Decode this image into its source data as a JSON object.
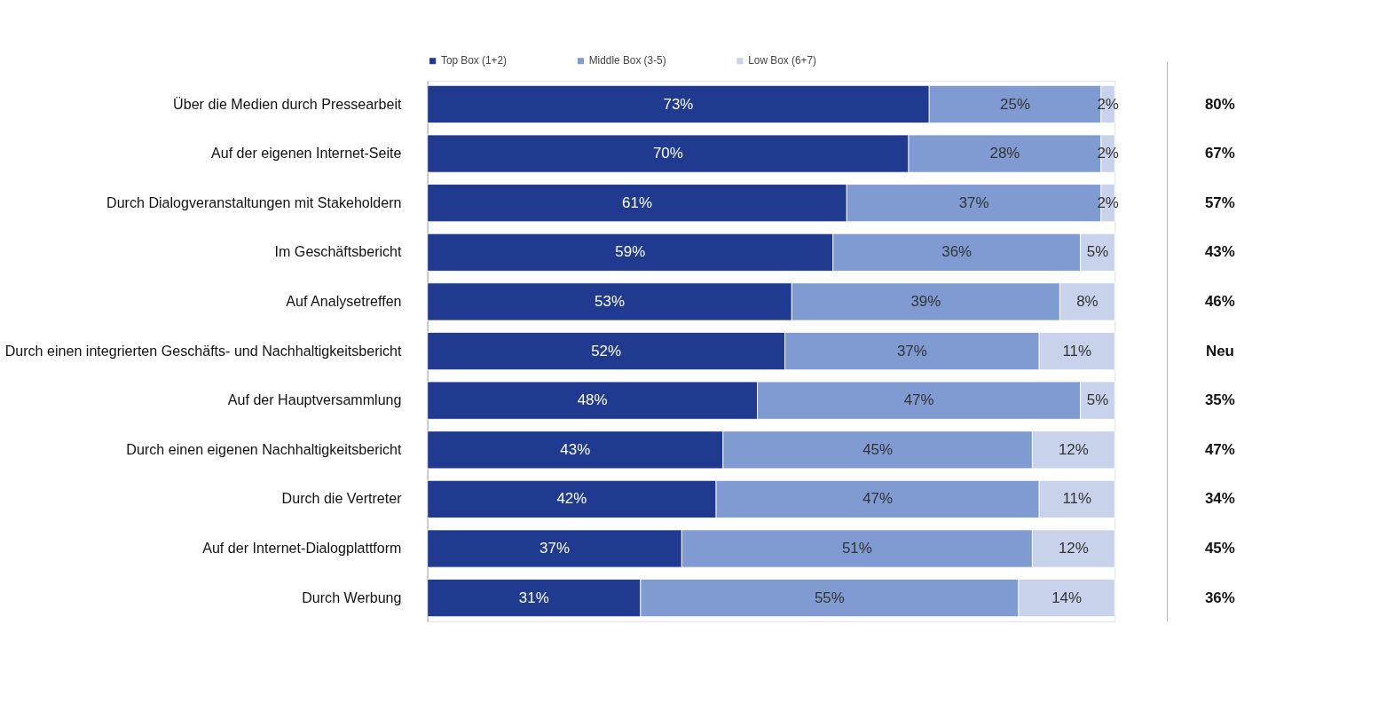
{
  "chart_data": {
    "type": "bar",
    "orientation": "horizontal",
    "stacked": true,
    "categories": [
      "Über die Medien durch Pressearbeit",
      "Auf der eigenen Internet-Seite",
      "Durch Dialogveranstaltungen mit Stakeholdern",
      "Im Geschäftsbericht",
      "Auf Analysetreffen",
      "Durch einen integrierten Geschäfts- und Nachhaltigkeitsbericht",
      "Auf der Hauptversammlung",
      "Durch einen eigenen Nachhaltigkeitsbericht",
      "Durch die Vertreter",
      "Auf der Internet-Dialogplattform",
      "Durch Werbung"
    ],
    "series": [
      {
        "name": "Top Box (1+2)",
        "color": "#1f3a8f",
        "values": [
          73,
          70,
          61,
          59,
          53,
          52,
          48,
          43,
          42,
          37,
          31
        ],
        "value_labels": [
          "73%",
          "70%",
          "61%",
          "59%",
          "53%",
          "52%",
          "48%",
          "43%",
          "42%",
          "37%",
          "31%"
        ]
      },
      {
        "name": "Middle Box (3-5)",
        "color": "#7f9bd2",
        "values": [
          25,
          28,
          37,
          36,
          39,
          37,
          47,
          45,
          47,
          51,
          55
        ],
        "value_labels": [
          "25%",
          "28%",
          "37%",
          "36%",
          "39%",
          "37%",
          "47%",
          "45%",
          "47%",
          "51%",
          "55%"
        ]
      },
      {
        "name": "Low Box (6+7)",
        "color": "#c8d2ea",
        "values": [
          2,
          2,
          2,
          5,
          8,
          11,
          5,
          12,
          11,
          12,
          14
        ],
        "value_labels": [
          "2%",
          "2%",
          "2%",
          "5%",
          "8%",
          "11%",
          "5%",
          "12%",
          "11%",
          "12%",
          "14%"
        ]
      }
    ],
    "xlim": [
      0,
      100
    ],
    "tick_labels": "y",
    "legend": "top",
    "annotations": [
      "80%",
      "67%",
      "57%",
      "43%",
      "46%",
      "Neu",
      "35%",
      "47%",
      "34%",
      "45%",
      "36%"
    ]
  }
}
